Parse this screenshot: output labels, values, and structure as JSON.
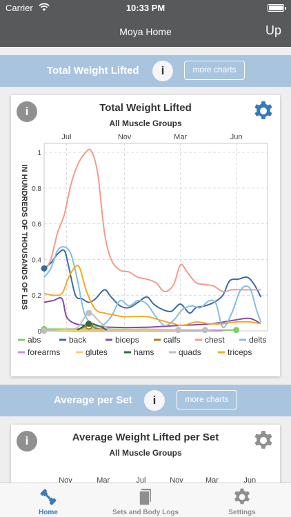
{
  "status": {
    "carrier": "Carrier",
    "time": "10:33 PM"
  },
  "nav": {
    "title": "Moya Home",
    "up": "Up"
  },
  "section1": {
    "label": "Total Weight Lifted",
    "info": "i",
    "more": "more charts"
  },
  "chart1": {
    "info": "i",
    "title": "Total Weight Lifted",
    "subtitle": "All Muscle Groups"
  },
  "section2": {
    "label": "Average per Set",
    "info": "i",
    "more": "more charts"
  },
  "chart2": {
    "info": "i",
    "title": "Average Weight Lifted per Set",
    "subtitle": "All Muscle Groups",
    "xticks": [
      "Nov",
      "Mar",
      "Jul",
      "Nov",
      "Mar",
      "Jun"
    ]
  },
  "tabs": [
    {
      "label": "Home",
      "icon": "dumbbell-icon"
    },
    {
      "label": "Sets and Body Logs",
      "icon": "pages-icon"
    },
    {
      "label": "Settings",
      "icon": "gear-icon"
    }
  ],
  "colors": {
    "nav": "#58595a",
    "section": "#a9c4df",
    "accent": "#3779b9"
  },
  "chart_data": {
    "type": "line",
    "title": "Total Weight Lifted",
    "subtitle": "All Muscle Groups",
    "ylabel": "IN HUNDREDS OF THOUSANDS OF LBS",
    "xticks": [
      "Jul",
      "Nov",
      "Mar",
      "Jun"
    ],
    "yticks": [
      "0",
      "0.2",
      "0.4",
      "0.6",
      "0.8",
      "1"
    ],
    "ylim": [
      0,
      1.05
    ],
    "grid": true,
    "legend_position": "bottom",
    "series": [
      {
        "name": "abs",
        "color": "#80d061",
        "points": [
          [
            0,
            0.01
          ],
          [
            0.15,
            0.01
          ],
          [
            0.3,
            0.01
          ],
          [
            0.5,
            0.005
          ],
          [
            0.7,
            0.005
          ],
          [
            0.86,
            0.005
          ]
        ]
      },
      {
        "name": "back",
        "color": "#3c6aa8",
        "points": [
          [
            0,
            0.35
          ],
          [
            0.03,
            0.38
          ],
          [
            0.06,
            0.43
          ],
          [
            0.09,
            0.45
          ],
          [
            0.11,
            0.36
          ],
          [
            0.14,
            0.2
          ],
          [
            0.17,
            0.18
          ],
          [
            0.2,
            0.16
          ],
          [
            0.23,
            0.18
          ],
          [
            0.27,
            0.23
          ],
          [
            0.3,
            0.19
          ],
          [
            0.34,
            0.14
          ],
          [
            0.38,
            0.13
          ],
          [
            0.42,
            0.16
          ],
          [
            0.46,
            0.19
          ],
          [
            0.49,
            0.15
          ],
          [
            0.53,
            0.12
          ],
          [
            0.57,
            0.11
          ],
          [
            0.61,
            0.15
          ],
          [
            0.65,
            0.1
          ],
          [
            0.68,
            0.13
          ],
          [
            0.72,
            0.14
          ],
          [
            0.76,
            0.16
          ],
          [
            0.8,
            0.2
          ],
          [
            0.83,
            0.28
          ],
          [
            0.87,
            0.29
          ],
          [
            0.91,
            0.3
          ],
          [
            0.94,
            0.26
          ],
          [
            0.97,
            0.19
          ]
        ]
      },
      {
        "name": "biceps",
        "color": "#8a46a8",
        "points": [
          [
            0,
            0.16
          ],
          [
            0.04,
            0.17
          ],
          [
            0.08,
            0.18
          ],
          [
            0.1,
            0.08
          ],
          [
            0.14,
            0.04
          ],
          [
            0.2,
            0.03
          ],
          [
            0.3,
            0.02
          ],
          [
            0.45,
            0.02
          ],
          [
            0.6,
            0.03
          ],
          [
            0.75,
            0.04
          ],
          [
            0.85,
            0.06
          ],
          [
            0.92,
            0.07
          ],
          [
            0.97,
            0.04
          ]
        ]
      },
      {
        "name": "calfs",
        "color": "#b4791b",
        "points": [
          [
            0,
            0
          ],
          [
            0.15,
            0.01
          ],
          [
            0.2,
            0.03
          ],
          [
            0.25,
            0.01
          ],
          [
            0.4,
            0.005
          ],
          [
            0.6,
            0.005
          ]
        ]
      },
      {
        "name": "chest",
        "color": "#f49a8a",
        "points": [
          [
            0,
            0.33
          ],
          [
            0.03,
            0.4
          ],
          [
            0.06,
            0.55
          ],
          [
            0.09,
            0.65
          ],
          [
            0.12,
            0.82
          ],
          [
            0.15,
            0.93
          ],
          [
            0.18,
            0.99
          ],
          [
            0.21,
            1.01
          ],
          [
            0.24,
            0.88
          ],
          [
            0.27,
            0.55
          ],
          [
            0.3,
            0.4
          ],
          [
            0.34,
            0.34
          ],
          [
            0.38,
            0.33
          ],
          [
            0.42,
            0.3
          ],
          [
            0.46,
            0.29
          ],
          [
            0.5,
            0.27
          ],
          [
            0.54,
            0.22
          ],
          [
            0.58,
            0.26
          ],
          [
            0.61,
            0.37
          ],
          [
            0.64,
            0.33
          ],
          [
            0.68,
            0.27
          ],
          [
            0.72,
            0.26
          ],
          [
            0.76,
            0.25
          ],
          [
            0.8,
            0.22
          ],
          [
            0.84,
            0.23
          ],
          [
            0.88,
            0.23
          ],
          [
            0.92,
            0.23
          ],
          [
            0.97,
            0.23
          ]
        ]
      },
      {
        "name": "delts",
        "color": "#84bde6",
        "points": [
          [
            0,
            0.3
          ],
          [
            0.03,
            0.35
          ],
          [
            0.06,
            0.45
          ],
          [
            0.09,
            0.47
          ],
          [
            0.12,
            0.43
          ],
          [
            0.15,
            0.28
          ],
          [
            0.18,
            0.1
          ],
          [
            0.22,
            0.03
          ],
          [
            0.26,
            0.03
          ],
          [
            0.3,
            0.08
          ],
          [
            0.34,
            0.17
          ],
          [
            0.38,
            0.14
          ],
          [
            0.42,
            0.17
          ],
          [
            0.46,
            0.15
          ],
          [
            0.5,
            0.08
          ],
          [
            0.54,
            0.03
          ],
          [
            0.58,
            0.06
          ],
          [
            0.62,
            0.12
          ],
          [
            0.66,
            0.14
          ],
          [
            0.7,
            0.13
          ],
          [
            0.74,
            0.17
          ],
          [
            0.77,
            0.15
          ],
          [
            0.8,
            0.02
          ],
          [
            0.84,
            0.1
          ],
          [
            0.88,
            0.23
          ],
          [
            0.92,
            0.24
          ],
          [
            0.95,
            0.12
          ],
          [
            0.97,
            0.05
          ]
        ]
      },
      {
        "name": "forearms",
        "color": "#c691d9",
        "points": [
          [
            0,
            0
          ],
          [
            0.2,
            0
          ],
          [
            0.4,
            0
          ],
          [
            0.6,
            0
          ],
          [
            0.8,
            0
          ]
        ]
      },
      {
        "name": "glutes",
        "color": "#f3d270",
        "points": [
          [
            0,
            0
          ],
          [
            0.2,
            0.005
          ],
          [
            0.4,
            0.005
          ],
          [
            0.6,
            0.005
          ]
        ]
      },
      {
        "name": "hams",
        "color": "#2f6d3b",
        "points": [
          [
            0.15,
            0.005
          ],
          [
            0.2,
            0.04
          ],
          [
            0.24,
            0.03
          ],
          [
            0.28,
            0.005
          ]
        ]
      },
      {
        "name": "quads",
        "color": "#bfbfbf",
        "points": [
          [
            0,
            0
          ],
          [
            0.1,
            0.01
          ],
          [
            0.15,
            0.02
          ],
          [
            0.2,
            0.1
          ],
          [
            0.25,
            0.05
          ],
          [
            0.3,
            0.01
          ],
          [
            0.45,
            0.01
          ],
          [
            0.6,
            0.005
          ],
          [
            0.75,
            0.005
          ]
        ]
      },
      {
        "name": "triceps",
        "color": "#f4a922",
        "points": [
          [
            0,
            0.21
          ],
          [
            0.04,
            0.2
          ],
          [
            0.08,
            0.21
          ],
          [
            0.11,
            0.3
          ],
          [
            0.14,
            0.36
          ],
          [
            0.16,
            0.35
          ],
          [
            0.19,
            0.22
          ],
          [
            0.23,
            0.12
          ],
          [
            0.27,
            0.1
          ],
          [
            0.31,
            0.09
          ],
          [
            0.35,
            0.08
          ],
          [
            0.4,
            0.08
          ],
          [
            0.46,
            0.08
          ],
          [
            0.52,
            0.06
          ],
          [
            0.58,
            0.04
          ],
          [
            0.62,
            0.03
          ],
          [
            0.68,
            0.05
          ],
          [
            0.74,
            0.04
          ],
          [
            0.8,
            0.04
          ],
          [
            0.86,
            0.05
          ],
          [
            0.92,
            0.05
          ],
          [
            0.97,
            0.04
          ]
        ]
      }
    ],
    "markers": [
      {
        "series": "abs",
        "xs": [
          0,
          0.86
        ]
      },
      {
        "series": "back",
        "xs": [
          0
        ]
      },
      {
        "series": "calfs",
        "xs": [
          0.2
        ]
      },
      {
        "series": "quads",
        "xs": [
          0,
          0.2,
          0.6,
          0.72
        ]
      },
      {
        "series": "hams",
        "xs": [
          0.2
        ]
      }
    ]
  }
}
